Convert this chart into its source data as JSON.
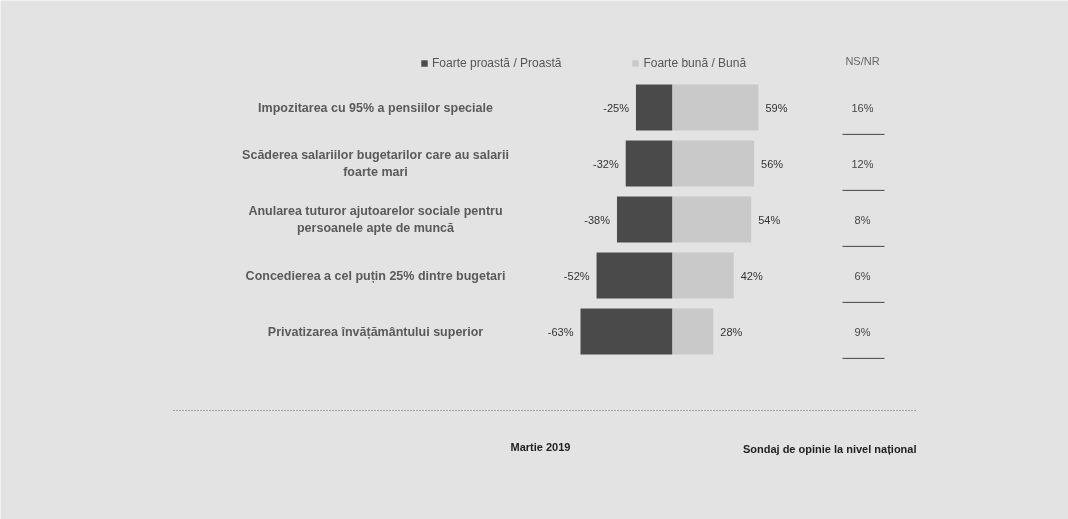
{
  "chart_data": {
    "type": "bar",
    "orientation": "horizontal",
    "stacked": true,
    "legend": "top",
    "tick_labels": "y",
    "categories": [
      "Impozitarea cu 95% a pensiilor speciale",
      "Scăderea salariilor bugetarilor care au salarii foarte mari",
      "Anularea tuturor ajutoarelor sociale pentru persoanele apte de muncă",
      "Concedierea a cel puțin 25% dintre bugetari",
      "Privatizarea învățământului superior"
    ],
    "series": [
      {
        "name": "Foarte proastă / Proastă",
        "color": "#4a4a4a",
        "values": [
          -25,
          -32,
          -38,
          -52,
          -63
        ],
        "value_labels": [
          "-25%",
          "-32%",
          "-38%",
          "-52%",
          "-63%"
        ]
      },
      {
        "name": "Foarte bună / Bună",
        "color": "#c9c9c9",
        "values": [
          59,
          56,
          54,
          42,
          28
        ],
        "value_labels": [
          "59%",
          "56%",
          "54%",
          "42%",
          "28%"
        ]
      }
    ],
    "annotations": [
      "NS/NR",
      "16%",
      "12%",
      "8%",
      "6%",
      "9%",
      "Martie 2019",
      "Sondaj de opinie la nivel național"
    ]
  }
}
